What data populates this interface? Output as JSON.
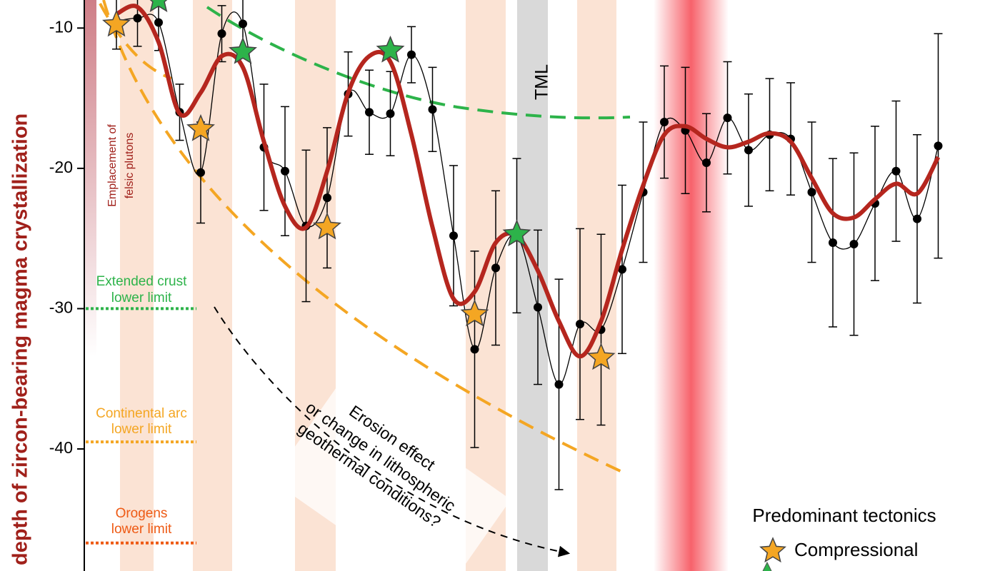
{
  "chart_data": {
    "type": "line",
    "y_label": "depth of zircon-bearing magma crystallization",
    "ylim": [
      -8,
      -48.7
    ],
    "yticks": [
      -10,
      -20,
      -30,
      -40
    ],
    "categories": [
      null,
      null,
      null,
      null,
      null,
      null,
      null,
      null,
      null,
      null,
      null,
      null,
      null,
      null,
      null,
      null,
      null,
      null,
      null,
      null,
      null,
      null,
      null,
      null,
      null,
      null,
      null,
      null,
      null,
      null,
      null,
      null,
      null,
      null,
      null,
      null,
      null,
      null,
      null,
      null
    ],
    "series": [
      {
        "kind": "points",
        "color": "#000000",
        "values": [
          -9.5,
          -9.3,
          -9.6,
          -16.0,
          -20.3,
          -10.4,
          -9.7,
          -18.5,
          -20.2,
          -24.1,
          -22.1,
          -14.7,
          -16.0,
          -16.1,
          -11.9,
          -15.8,
          -24.8,
          -32.9,
          -27.1,
          -24.8,
          -29.9,
          -35.4,
          -31.1,
          -31.5,
          -27.2,
          -21.7,
          -16.7,
          -17.3,
          -19.6,
          -16.4,
          -18.7,
          -17.6,
          -17.9,
          -21.7,
          -25.3,
          -25.4,
          -22.5,
          -20.2,
          -23.6,
          -18.4
        ],
        "errors": [
          2,
          2,
          2,
          2,
          3.6,
          2,
          2,
          4.5,
          4.6,
          5.4,
          5,
          3,
          3,
          3,
          2,
          3,
          5,
          7,
          5.5,
          5.5,
          5.5,
          7.5,
          6.8,
          6.8,
          6,
          5,
          4,
          4.5,
          3.5,
          4,
          4,
          4,
          4,
          5,
          6,
          6.5,
          5.5,
          5,
          6,
          8
        ]
      },
      {
        "kind": "trend",
        "color": "#b5261e",
        "values": [
          -9.0,
          -8.5,
          -11,
          -16.1,
          -14.6,
          -12,
          -12.8,
          -18.1,
          -22.7,
          -24.2,
          -20.2,
          -14.6,
          -12,
          -12.4,
          -17.6,
          -24.2,
          -29.3,
          -28.8,
          -25.3,
          -24.8,
          -27.3,
          -30.9,
          -33.4,
          -30.9,
          -25.8,
          -21.2,
          -17.6,
          -17,
          -17.9,
          -18.5,
          -18.1,
          -17.5,
          -18.1,
          -20.7,
          -23.2,
          -23.5,
          -22.2,
          -21.1,
          -21.8,
          -19.2
        ]
      },
      {
        "kind": "star",
        "name": "Compressional",
        "color": "#f4a623",
        "values": [
          -9.75,
          null,
          null,
          null,
          -17.2,
          null,
          null,
          null,
          null,
          null,
          -24.2,
          null,
          null,
          null,
          null,
          null,
          null,
          -30.4,
          null,
          null,
          null,
          null,
          null,
          -33.5,
          null,
          null,
          null,
          null,
          null,
          null,
          null,
          null,
          null,
          null,
          null,
          null,
          null,
          null,
          null,
          null
        ]
      },
      {
        "kind": "star",
        "color": "#2db34a",
        "values": [
          null,
          null,
          -8,
          null,
          null,
          null,
          -11.7,
          null,
          null,
          null,
          null,
          null,
          null,
          -11.6,
          null,
          null,
          null,
          null,
          null,
          -24.7,
          null,
          null,
          null,
          null,
          null,
          null,
          null,
          null,
          null,
          null,
          null,
          null,
          null,
          null,
          null,
          null,
          null,
          null,
          null,
          null
        ]
      }
    ],
    "legend_title": "Predominant tectonics",
    "legend": "bottom-right",
    "hlines": [
      {
        "value": -30,
        "label": [
          "Extended crust",
          "lower limit"
        ],
        "color": "#2db34a"
      },
      {
        "value": -39.5,
        "label": [
          "Continental arc",
          "lower limit"
        ],
        "color": "#f4a623"
      },
      {
        "value": -46.7,
        "label": [
          "Orogens",
          "lower limit"
        ],
        "color": "#ee5a14"
      }
    ],
    "annotations": [
      {
        "text": [
          "TML"
        ]
      },
      {
        "text": [
          "Emplacement of",
          "felsic plutons"
        ]
      },
      {
        "text": [
          "Erosion effect",
          "or change in lithospheric",
          "geothermal conditions?"
        ]
      }
    ]
  }
}
